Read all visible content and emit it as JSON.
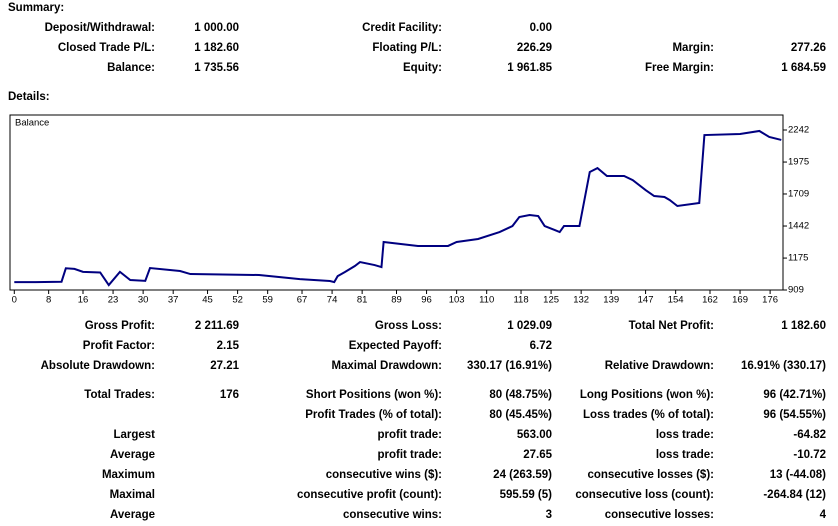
{
  "summary": {
    "title": "Summary:",
    "rows": [
      [
        "Deposit/Withdrawal:",
        "1 000.00",
        "Credit Facility:",
        "0.00",
        null,
        null
      ],
      [
        "Closed Trade P/L:",
        "1 182.60",
        "Floating P/L:",
        "226.29",
        "Margin:",
        "277.26"
      ],
      [
        "Balance:",
        "1 735.56",
        "Equity:",
        "1 961.85",
        "Free Margin:",
        "1 684.59"
      ]
    ]
  },
  "details": {
    "title": "Details:",
    "rows": [
      [
        "Gross Profit:",
        "2 211.69",
        "Gross Loss:",
        "1 029.09",
        "Total Net Profit:",
        "1 182.60"
      ],
      [
        "Profit Factor:",
        "2.15",
        "Expected Payoff:",
        "6.72",
        null,
        null
      ],
      [
        "Absolute Drawdown:",
        "27.21",
        "Maximal Drawdown:",
        "330.17 (16.91%)",
        "Relative Drawdown:",
        "16.91% (330.17)"
      ],
      [
        "Total Trades:",
        "176",
        "Short Positions (won %):",
        "80 (48.75%)",
        "Long Positions (won %):",
        "96 (42.71%)"
      ],
      [
        null,
        null,
        "Profit Trades (% of total):",
        "80 (45.45%)",
        "Loss trades (% of total):",
        "96 (54.55%)"
      ],
      [
        "Largest",
        null,
        "profit trade:",
        "563.00",
        "loss trade:",
        "-64.82"
      ],
      [
        "Average",
        null,
        "profit trade:",
        "27.65",
        "loss trade:",
        "-10.72"
      ],
      [
        "Maximum",
        null,
        "consecutive wins ($):",
        "24 (263.59)",
        "consecutive losses ($):",
        "13 (-44.08)"
      ],
      [
        "Maximal",
        null,
        "consecutive profit (count):",
        "595.59 (5)",
        "consecutive loss (count):",
        "-264.84 (12)"
      ],
      [
        "Average",
        null,
        "consecutive wins:",
        "3",
        "consecutive losses:",
        "4"
      ]
    ]
  },
  "chart_data": {
    "type": "line",
    "x": [
      0,
      5,
      11,
      12,
      14,
      16,
      20,
      22,
      24.6,
      27,
      30.5,
      31.6,
      38.6,
      41,
      57,
      66.5,
      73.5,
      74.5,
      75.3,
      77,
      79.3,
      80.5,
      83.9,
      85.5,
      86,
      92,
      94,
      101,
      103,
      108,
      113,
      115,
      116,
      117.6,
      120,
      122,
      123.5,
      125.8,
      127,
      128,
      131.6,
      134,
      135.8,
      138,
      142,
      144,
      147,
      149,
      151.4,
      152.6,
      154.4,
      159.5,
      160.7,
      169,
      173.5,
      175.8,
      178.6
    ],
    "series": [
      {
        "name": "Balance",
        "color": "#000080",
        "values": [
          975,
          975,
          978,
          1090,
          1085,
          1060,
          1055,
          950,
          1060,
          992,
          985,
          1092,
          1067,
          1042,
          1034,
          1000,
          984,
          975,
          1025,
          1059,
          1109,
          1142,
          1117,
          1100,
          1309,
          1284,
          1276,
          1276,
          1309,
          1334,
          1392,
          1425,
          1442,
          1517,
          1534,
          1525,
          1442,
          1409,
          1392,
          1442,
          1442,
          1892,
          1925,
          1859,
          1859,
          1825,
          1742,
          1692,
          1684,
          1659,
          1609,
          1634,
          2200,
          2209,
          2234,
          2184,
          2159
        ]
      }
    ],
    "xlim": [
      -1,
      179
    ],
    "ylim": [
      909,
      2367
    ],
    "xticks": [
      0,
      8,
      16,
      23,
      30,
      37,
      45,
      52,
      59,
      67,
      74,
      81,
      89,
      96,
      103,
      110,
      118,
      125,
      132,
      139,
      147,
      154,
      162,
      169,
      176
    ],
    "yticks": [
      909,
      1175,
      1442,
      1709,
      1975,
      2242
    ],
    "grid": false
  }
}
